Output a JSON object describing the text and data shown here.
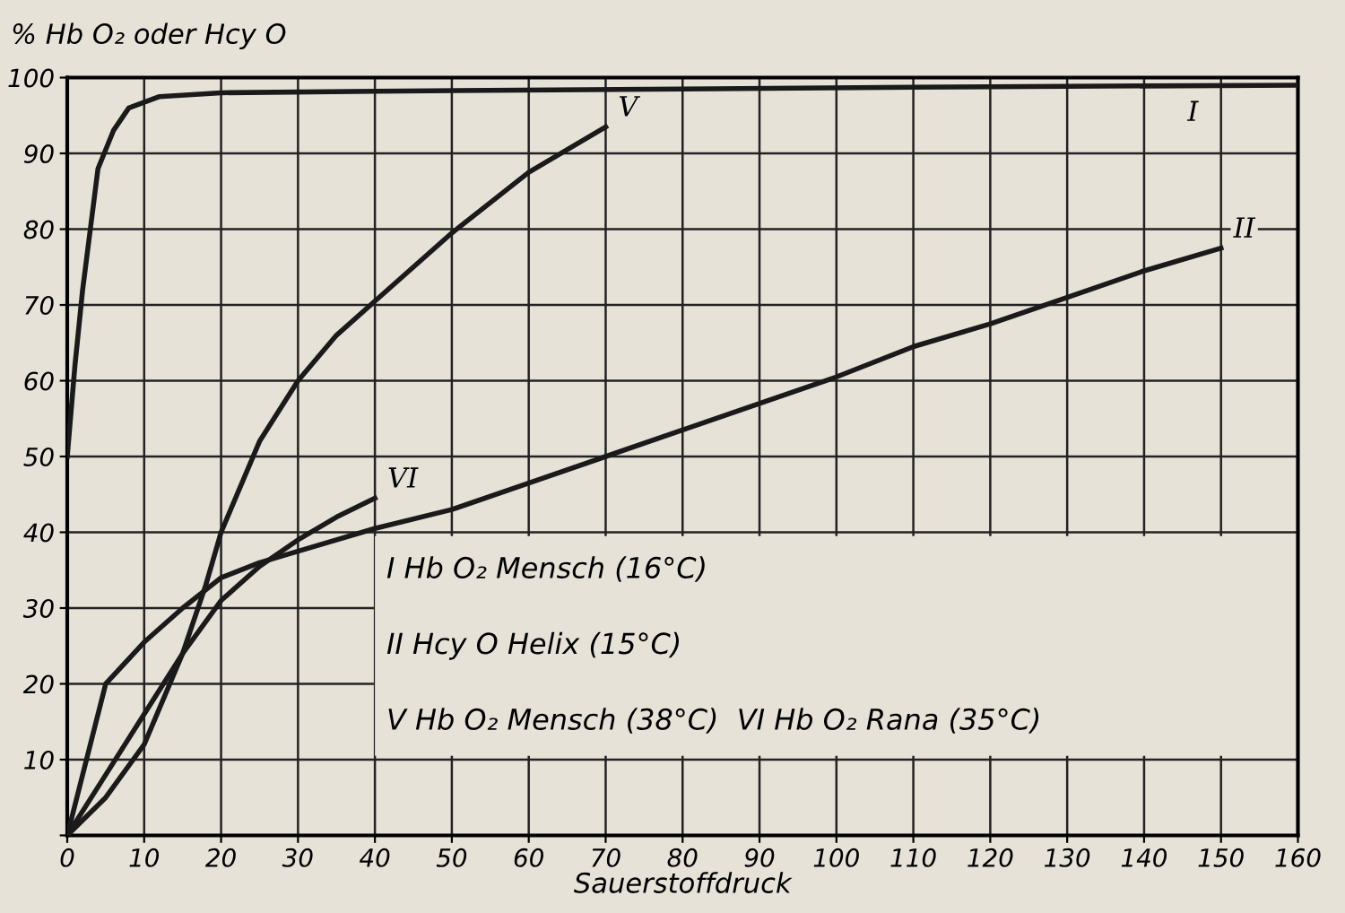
{
  "chart_data": {
    "type": "line",
    "xlabel": "Sauerstoffdruck",
    "ylabel": "% Hb O₂ oder Hcy O",
    "xlim": [
      0,
      160
    ],
    "ylim": [
      0,
      100
    ],
    "xticks": [
      0,
      10,
      20,
      30,
      40,
      50,
      60,
      70,
      80,
      90,
      100,
      110,
      120,
      130,
      140,
      150,
      160
    ],
    "yticks": [
      {
        "value": 0,
        "label": null
      },
      10,
      20,
      30,
      40,
      50,
      60,
      70,
      80,
      90,
      100
    ],
    "grid": true,
    "legend": false,
    "marker": "none",
    "line_style": "solid",
    "series": [
      {
        "name": "I",
        "color": "#1a1a1a",
        "x": [
          0,
          1,
          2,
          3,
          4,
          6,
          8,
          12,
          20,
          40,
          80,
          120,
          160
        ],
        "values": [
          50,
          62,
          72,
          80,
          88,
          93,
          96,
          97.5,
          98,
          98.2,
          98.5,
          98.8,
          99
        ]
      },
      {
        "name": "II",
        "color": "#1a1a1a",
        "x": [
          0,
          5,
          10,
          15,
          20,
          25,
          30,
          40,
          50,
          60,
          70,
          80,
          90,
          100,
          110,
          120,
          130,
          140,
          150
        ],
        "values": [
          0,
          20,
          25.5,
          30,
          34,
          36,
          37.5,
          40.5,
          43,
          46.5,
          50,
          53.5,
          57,
          60.5,
          64.5,
          67.5,
          71,
          74.5,
          77.5
        ]
      },
      {
        "name": "V",
        "color": "#1a1a1a",
        "x": [
          0,
          5,
          10,
          15,
          18,
          20,
          25,
          30,
          35,
          40,
          50,
          60,
          70
        ],
        "values": [
          0,
          5,
          12,
          24,
          33,
          40,
          52,
          60,
          66,
          70.5,
          79.5,
          87.5,
          93.5
        ]
      },
      {
        "name": "VI",
        "color": "#1a1a1a",
        "x": [
          0,
          5,
          10,
          15,
          20,
          25,
          30,
          35,
          40
        ],
        "values": [
          0,
          8,
          16,
          24,
          31,
          35.5,
          39,
          42,
          44.5
        ]
      }
    ],
    "annotations": [
      "I Hb O₂ Mensch (16°C)",
      "II Hcy O Helix (15°C)",
      "V Hb O₂ Mensch (38°C)  VI Hb O₂ Rana (35°C)"
    ]
  }
}
